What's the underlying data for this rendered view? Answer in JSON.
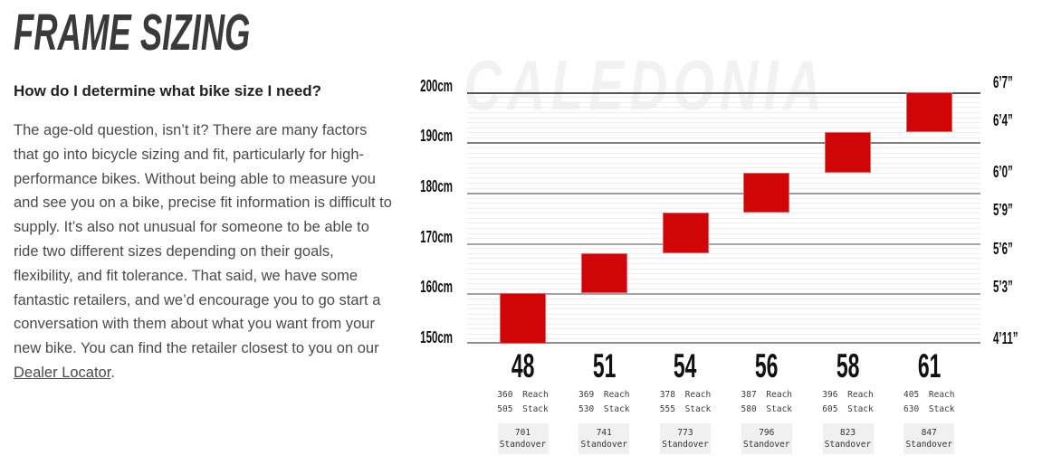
{
  "header": {
    "title": "FRAME SIZING",
    "subtitle": "How do I determine what bike size I need?"
  },
  "body": {
    "text_before_link": "The age-old question, isn’t it? There are many factors that go into bicycle sizing and fit, particularly for high-performance bikes. Without being able to measure you and see you on a bike, precise fit information is difficult to supply. It’s also not unusual for someone to be able to ride two different sizes depending on their goals, flexibility, and fit tolerance. That said, we have some fantastic retailers, and we’d encourage you to go start a conversation with them about what you want from your new bike. You can find the retailer closest to you on our ",
    "link_text": "Dealer Locator",
    "text_after_link": "."
  },
  "chart_data": {
    "type": "bar",
    "subtype": "floating-range-bars",
    "watermark": "CALEDONIA",
    "bar_color": "#d00505",
    "grid": "on",
    "y_axis_left_unit": "cm",
    "y_axis_range_cm": [
      150,
      200
    ],
    "y_axis_left": [
      {
        "label": "200cm",
        "cm": 200
      },
      {
        "label": "190cm",
        "cm": 190
      },
      {
        "label": "180cm",
        "cm": 180
      },
      {
        "label": "170cm",
        "cm": 170
      },
      {
        "label": "160cm",
        "cm": 160
      },
      {
        "label": "150cm",
        "cm": 150
      }
    ],
    "y_axis_right": [
      {
        "label": "6’7”",
        "cm": 200.66
      },
      {
        "label": "6’4”",
        "cm": 193.04
      },
      {
        "label": "6’0”",
        "cm": 182.88
      },
      {
        "label": "5’9”",
        "cm": 175.26
      },
      {
        "label": "5’6”",
        "cm": 167.64
      },
      {
        "label": "5’3”",
        "cm": 160.02
      },
      {
        "label": "4’11”",
        "cm": 149.86
      }
    ],
    "labels": {
      "reach": "Reach",
      "stack": "Stack",
      "standover": "Standover"
    },
    "sizes": [
      {
        "size": "48",
        "rider_height_min_cm": 150,
        "rider_height_max_cm": 160,
        "reach": 360,
        "stack": 505,
        "standover": 701
      },
      {
        "size": "51",
        "rider_height_min_cm": 160,
        "rider_height_max_cm": 168,
        "reach": 369,
        "stack": 530,
        "standover": 741
      },
      {
        "size": "54",
        "rider_height_min_cm": 168,
        "rider_height_max_cm": 176,
        "reach": 378,
        "stack": 555,
        "standover": 773
      },
      {
        "size": "56",
        "rider_height_min_cm": 176,
        "rider_height_max_cm": 184,
        "reach": 387,
        "stack": 580,
        "standover": 796
      },
      {
        "size": "58",
        "rider_height_min_cm": 184,
        "rider_height_max_cm": 192,
        "reach": 396,
        "stack": 605,
        "standover": 823
      },
      {
        "size": "61",
        "rider_height_min_cm": 192,
        "rider_height_max_cm": 200,
        "reach": 405,
        "stack": 630,
        "standover": 847
      }
    ]
  }
}
